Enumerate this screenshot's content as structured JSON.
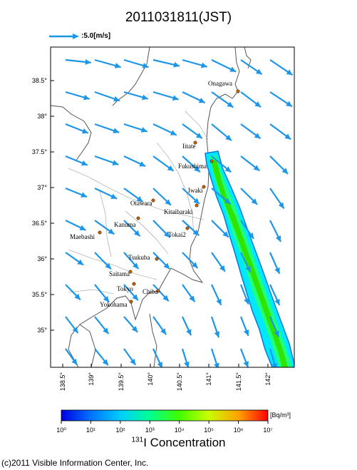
{
  "title": "2011031811(JST)",
  "vector_legend": {
    "label": ":5.0[m/s]",
    "color": "#1e96e8"
  },
  "axes": {
    "y_ticks": [
      "38.5°",
      "38°",
      "37.5°",
      "37°",
      "36.5°",
      "36°",
      "35.5°",
      "35°"
    ],
    "x_ticks": [
      "138.5°",
      "139°",
      "139.5°",
      "140°",
      "140.5°",
      "141°",
      "141.5°",
      "142°"
    ]
  },
  "cities": [
    {
      "name": "Onagawa"
    },
    {
      "name": "Iitate"
    },
    {
      "name": "Fukushima"
    },
    {
      "name": "Iwaki"
    },
    {
      "name": "Otawara"
    },
    {
      "name": "Kitaibaraki"
    },
    {
      "name": "Kanuma"
    },
    {
      "name": "Tokai2"
    },
    {
      "name": "Maebashi"
    },
    {
      "name": "Tsukuba"
    },
    {
      "name": "Saitama"
    },
    {
      "name": "Tokyo"
    },
    {
      "name": "Chiba"
    },
    {
      "name": "Yokohama"
    }
  ],
  "colorbar": {
    "unit": "[Bq/m³]",
    "tick_labels": [
      "10⁰",
      "10¹",
      "10²",
      "10³",
      "10⁴",
      "10⁵",
      "10⁶",
      "10⁷"
    ],
    "title_sup": "131",
    "title_text": "I Concentration"
  },
  "credit": "(c)2011 Visible Information Center, Inc."
}
